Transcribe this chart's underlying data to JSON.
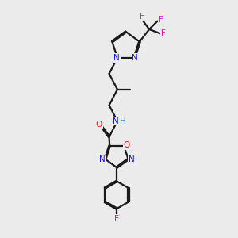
{
  "bg_color": "#ebebeb",
  "bond_color": "#1a1a1a",
  "N_color": "#1414ff",
  "O_color": "#ff1414",
  "F_color": "#ff00cc",
  "H_color": "#3a9a9a",
  "line_width": 1.6,
  "dbl_off": 0.045,
  "xlim": [
    0,
    10
  ],
  "ylim": [
    0,
    17
  ]
}
